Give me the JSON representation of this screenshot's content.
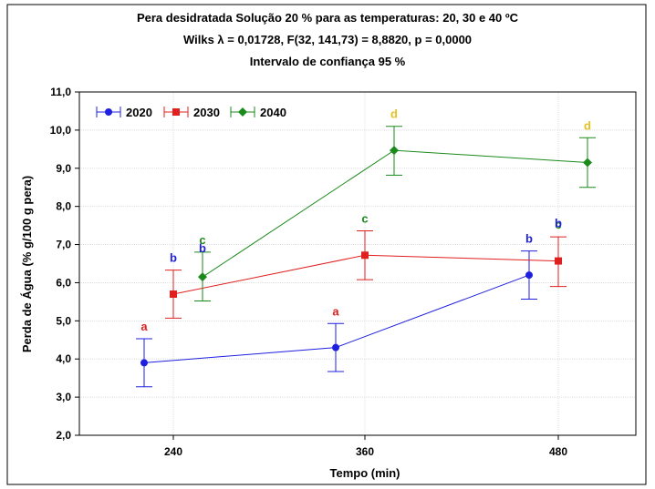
{
  "chart_data": {
    "type": "line",
    "title": "Pera desidratada Solução 20 % para as temperaturas: 20, 30 e 40 ºC",
    "subtitle_lines": [
      "Wilks λ = 0,01728, F(32, 141,73) = 8,8820, p = 0,0000",
      "Intervalo de confiança 95 %"
    ],
    "xlabel": "Tempo (min)",
    "ylabel": "Perda de Água (% g/100 g pera)",
    "categories": [
      "240",
      "360",
      "480"
    ],
    "ylim": [
      2.0,
      11.0
    ],
    "y_ticks": [
      "2,0",
      "3,0",
      "4,0",
      "5,0",
      "6,0",
      "7,0",
      "8,0",
      "9,0",
      "10,0",
      "11,0"
    ],
    "grid": true,
    "legend_position": "top-left",
    "series": [
      {
        "name": "2020",
        "color": "#1f1fe0",
        "marker": "circle",
        "offset_index": 0,
        "values": [
          3.9,
          4.3,
          6.2
        ],
        "lower": [
          3.27,
          3.67,
          5.57
        ],
        "upper": [
          4.53,
          4.93,
          6.83
        ],
        "letters": [
          "a",
          "a",
          "b"
        ]
      },
      {
        "name": "2030",
        "color": "#e01f1f",
        "marker": "square",
        "offset_index": 1,
        "values": [
          5.7,
          6.72,
          6.57
        ],
        "lower": [
          5.07,
          6.08,
          5.9
        ],
        "upper": [
          6.33,
          7.36,
          7.2
        ],
        "letters": [
          "b",
          "c",
          "c"
        ]
      },
      {
        "name": "2040",
        "color": "#1a8a1a",
        "marker": "diamond",
        "offset_index": 2,
        "values": [
          6.15,
          9.47,
          9.15
        ],
        "lower": [
          5.52,
          8.82,
          8.5
        ],
        "upper": [
          6.8,
          10.1,
          9.8
        ],
        "letters": [
          "c",
          "d",
          "d"
        ]
      }
    ],
    "extra_letters": [
      {
        "text": "b",
        "color": "#1f1fe0",
        "category": 0,
        "y": 6.8,
        "offset_index": 2
      },
      {
        "text": "b",
        "color": "#1f1fe0",
        "category": 2,
        "y": 7.45,
        "offset_index": 1
      }
    ],
    "letter_colors": {
      "a": "#e01f1f",
      "b": "#1f1fe0",
      "c": "#1a8a1a",
      "d": "#e8c020"
    }
  }
}
